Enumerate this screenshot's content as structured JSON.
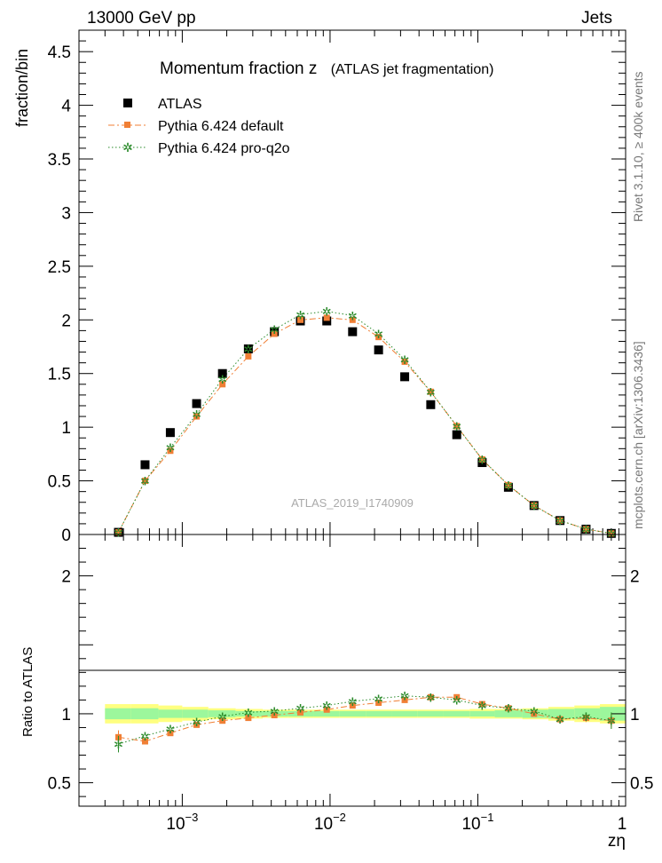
{
  "header": {
    "energy_label": "13000 GeV pp",
    "process_label": "Jets",
    "side_label_top": "Rivet 3.1.10, ≥ 400k events",
    "side_label_bottom": "mcplots.cern.ch [arXiv:1306.3436]"
  },
  "chart_data": [
    {
      "type": "scatter",
      "title": "Momentum fraction z",
      "subtitle": "(ATLAS jet fragmentation)",
      "watermark": "ATLAS_2019_I1740909",
      "xlabel": "zη",
      "ylabel": "fraction/bin",
      "xscale": "log",
      "xlim": [
        0.0002,
        1
      ],
      "ylim": [
        0,
        4.7
      ],
      "yticks": [
        0,
        0.5,
        1,
        1.5,
        2,
        2.5,
        3,
        3.5,
        4,
        4.5
      ],
      "ytick_labels": [
        "0",
        "0.5",
        "1",
        "1.5",
        "2",
        "2.5",
        "3",
        "3.5",
        "4",
        "4.5"
      ],
      "legend_position": "top-left",
      "x": [
        0.00037,
        0.00056,
        0.00083,
        0.00125,
        0.00187,
        0.0028,
        0.0042,
        0.0063,
        0.0095,
        0.0142,
        0.0213,
        0.032,
        0.048,
        0.072,
        0.107,
        0.161,
        0.24,
        0.36,
        0.54,
        0.8
      ],
      "series": [
        {
          "name": "ATLAS",
          "color": "#000000",
          "marker": "square",
          "values": [
            0.02,
            0.65,
            0.95,
            1.22,
            1.5,
            1.73,
            1.89,
            1.99,
            1.99,
            1.89,
            1.72,
            1.47,
            1.21,
            0.93,
            0.67,
            0.44,
            0.27,
            0.13,
            0.05,
            0.01
          ]
        },
        {
          "name": "Pythia 6.424 default",
          "color": "#f07f35",
          "marker": "square-small",
          "dash": "7,3,2,3",
          "values": [
            0.02,
            0.5,
            0.78,
            1.1,
            1.4,
            1.66,
            1.87,
            2.0,
            2.02,
            2.0,
            1.84,
            1.61,
            1.33,
            1.01,
            0.7,
            0.46,
            0.27,
            0.13,
            0.05,
            0.01
          ]
        },
        {
          "name": "Pythia 6.424 pro-q2o",
          "color": "#2a8a2a",
          "marker": "star",
          "dash": "1.5,2.5",
          "values": [
            0.02,
            0.5,
            0.81,
            1.12,
            1.45,
            1.73,
            1.91,
            2.05,
            2.08,
            2.04,
            1.87,
            1.63,
            1.33,
            1.01,
            0.7,
            0.46,
            0.27,
            0.13,
            0.05,
            0.01
          ]
        }
      ]
    },
    {
      "type": "scatter",
      "xlabel": "zη",
      "ylabel": "Ratio to ATLAS",
      "xscale": "log",
      "xlim": [
        0.0002,
        1
      ],
      "ylim": [
        0.33,
        2.3
      ],
      "yticks": [
        0.5,
        1,
        2
      ],
      "ytick_labels": [
        "0.5",
        "1",
        "2"
      ],
      "xtick_labels": [
        "10−3",
        "10−2",
        "10−1",
        "1"
      ],
      "x": [
        0.00037,
        0.00056,
        0.00083,
        0.00125,
        0.00187,
        0.0028,
        0.0042,
        0.0063,
        0.0095,
        0.0142,
        0.0213,
        0.032,
        0.048,
        0.072,
        0.107,
        0.161,
        0.24,
        0.36,
        0.54,
        0.8
      ],
      "band_x_edges": [
        0.0003,
        0.00045,
        0.00069,
        0.001,
        0.0015,
        0.0023,
        0.0035,
        0.0052,
        0.0078,
        0.0116,
        0.0175,
        0.026,
        0.039,
        0.058,
        0.088,
        0.13,
        0.2,
        0.3,
        0.45,
        0.67,
        1.0
      ],
      "band_inner": [
        0.04,
        0.04,
        0.03,
        0.03,
        0.025,
        0.02,
        0.02,
        0.02,
        0.02,
        0.02,
        0.02,
        0.02,
        0.02,
        0.02,
        0.02,
        0.025,
        0.03,
        0.035,
        0.04,
        0.05
      ],
      "band_outer": [
        0.07,
        0.07,
        0.06,
        0.05,
        0.04,
        0.035,
        0.03,
        0.03,
        0.03,
        0.03,
        0.03,
        0.03,
        0.03,
        0.03,
        0.035,
        0.035,
        0.04,
        0.05,
        0.06,
        0.07
      ],
      "series": [
        {
          "name": "Pythia 6.424 default",
          "color": "#f07f35",
          "marker": "square-small",
          "dash": "7,3,2,3",
          "values": [
            0.83,
            0.8,
            0.86,
            0.92,
            0.95,
            0.97,
            0.99,
            1.01,
            1.03,
            1.06,
            1.08,
            1.1,
            1.12,
            1.12,
            1.07,
            1.04,
            1.0,
            0.96,
            0.97,
            0.95
          ],
          "errors": [
            0.05,
            0.01,
            0.01,
            0.01,
            0.01,
            0.01,
            0.01,
            0.01,
            0.01,
            0.01,
            0.01,
            0.01,
            0.01,
            0.01,
            0.01,
            0.01,
            0.01,
            0.01,
            0.03,
            0.05
          ]
        },
        {
          "name": "Pythia 6.424 pro-q2o",
          "color": "#2a8a2a",
          "marker": "star",
          "dash": "1.5,2.5",
          "values": [
            0.78,
            0.84,
            0.89,
            0.94,
            0.98,
            1.01,
            1.02,
            1.04,
            1.06,
            1.09,
            1.11,
            1.13,
            1.12,
            1.1,
            1.06,
            1.04,
            1.02,
            0.96,
            0.98,
            0.95
          ],
          "errors": [
            0.06,
            0.01,
            0.01,
            0.01,
            0.01,
            0.01,
            0.01,
            0.01,
            0.01,
            0.01,
            0.01,
            0.01,
            0.01,
            0.01,
            0.01,
            0.01,
            0.01,
            0.01,
            0.03,
            0.06
          ]
        }
      ]
    }
  ]
}
